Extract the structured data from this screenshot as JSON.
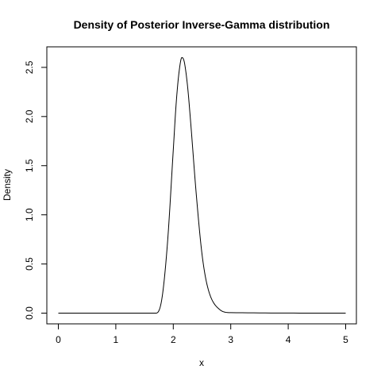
{
  "chart_data": {
    "type": "line",
    "title": "Density of Posterior Inverse-Gamma distribution",
    "xlabel": "x",
    "ylabel": "Density",
    "xlim": [
      0,
      5
    ],
    "ylim": [
      0,
      2.6
    ],
    "x_ticks": [
      "0",
      "1",
      "2",
      "3",
      "4",
      "5"
    ],
    "y_ticks": [
      "0.0",
      "0.5",
      "1.0",
      "1.5",
      "2.0",
      "2.5"
    ],
    "grid": false,
    "legend": "none",
    "line_color": "#000000",
    "series": [
      {
        "x": [
          0,
          1.7,
          1.8,
          1.9,
          2.0,
          2.05,
          2.1,
          2.15,
          2.18,
          2.2,
          2.25,
          2.3,
          2.4,
          2.5,
          2.6,
          2.8,
          3.0,
          5.0
        ],
        "values": [
          0,
          0,
          0.14,
          0.72,
          1.66,
          2.13,
          2.45,
          2.6,
          2.58,
          2.53,
          2.3,
          1.96,
          1.21,
          0.6,
          0.26,
          0.04,
          0.005,
          0
        ]
      }
    ]
  }
}
